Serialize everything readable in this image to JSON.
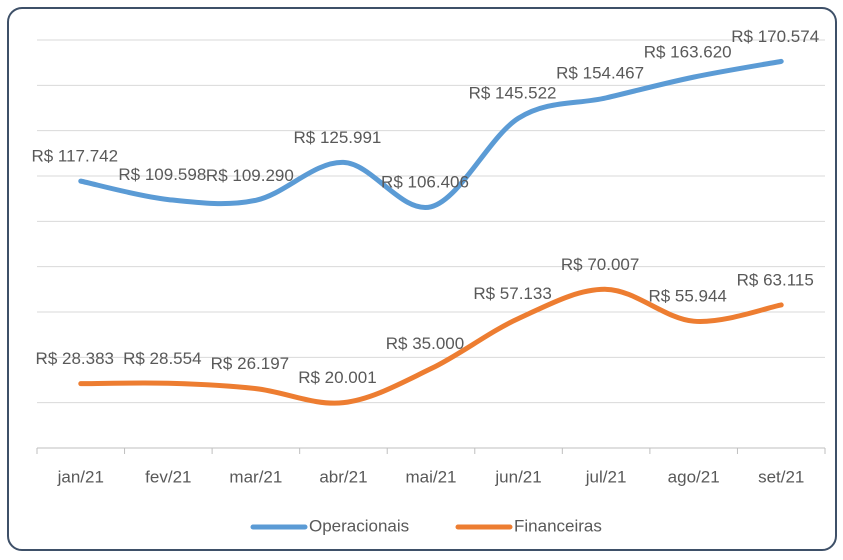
{
  "chart_data": {
    "type": "line",
    "categories": [
      "jan/21",
      "fev/21",
      "mar/21",
      "abr/21",
      "mai/21",
      "jun/21",
      "jul/21",
      "ago/21",
      "set/21"
    ],
    "series": [
      {
        "name": "Operacionais",
        "color": "#5b9bd5",
        "values": [
          117742,
          109598,
          109290,
          125991,
          106406,
          145522,
          154467,
          163620,
          170574
        ],
        "value_labels": [
          "R$ 117.742",
          "R$ 109.598",
          "R$ 109.290",
          "R$ 125.991",
          "R$ 106.406",
          "R$ 145.522",
          "R$ 154.467",
          "R$ 163.620",
          "R$ 170.574"
        ]
      },
      {
        "name": "Financeiras",
        "color": "#ed7d31",
        "values": [
          28383,
          28554,
          26197,
          20001,
          35000,
          57133,
          70007,
          55944,
          63115
        ],
        "value_labels": [
          "R$ 28.383",
          "R$ 28.554",
          "R$ 26.197",
          "R$ 20.001",
          "R$ 35.000",
          "R$ 57.133",
          "R$ 70.007",
          "R$ 55.944",
          "R$ 63.115"
        ]
      }
    ],
    "ylim": [
      0,
      180000
    ],
    "yticks": [
      0,
      20000,
      40000,
      60000,
      80000,
      100000,
      120000,
      140000,
      160000,
      180000
    ],
    "grid": true,
    "smooth": true,
    "legend": "bottom"
  }
}
